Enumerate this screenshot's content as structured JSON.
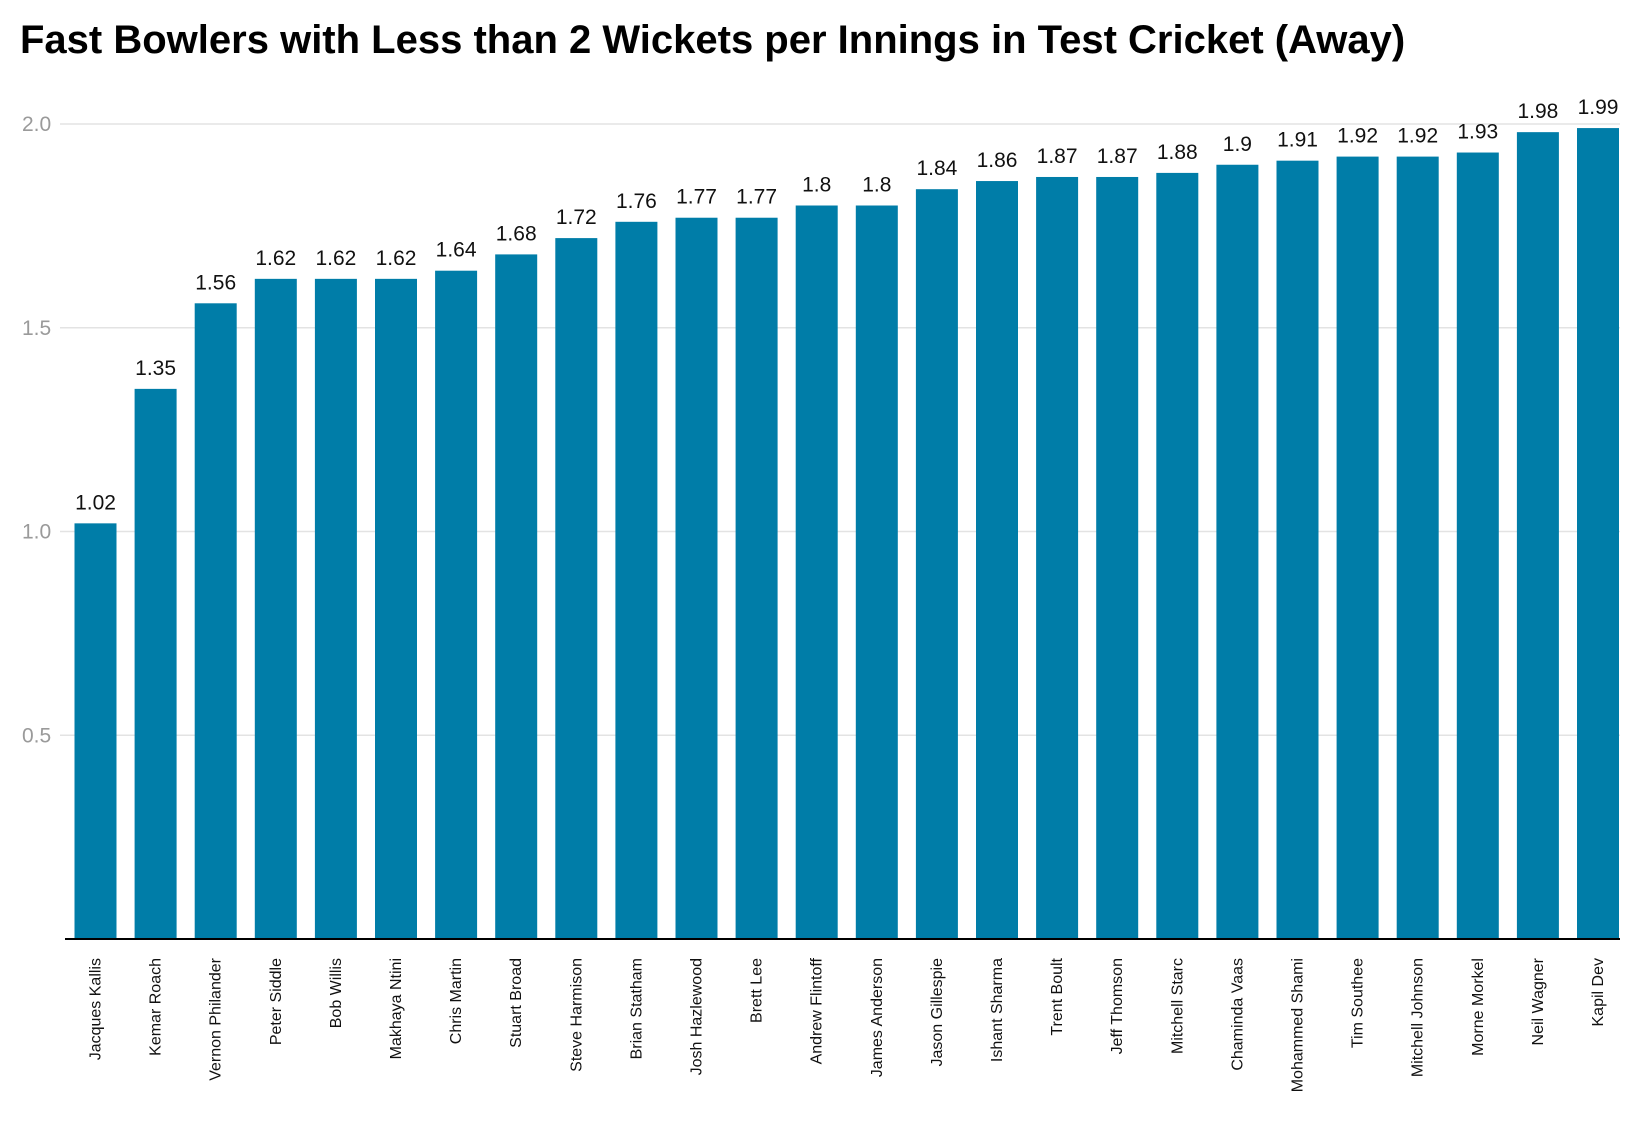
{
  "chart_data": {
    "type": "bar",
    "title": "Fast Bowlers with Less than 2 Wickets per Innings in Test Cricket (Away)",
    "xlabel": "",
    "ylabel": "",
    "ylim": [
      0,
      2.0
    ],
    "yticks": [
      "0.5",
      "1.0",
      "1.5",
      "2.0"
    ],
    "grid": true,
    "bar_color": "#007da8",
    "categories": [
      "Jacques Kallis",
      "Kemar Roach",
      "Vernon Philander",
      "Peter Siddle",
      "Bob Willis",
      "Makhaya Ntini",
      "Chris Martin",
      "Stuart Broad",
      "Steve Harmison",
      "Brian Statham",
      "Josh Hazlewood",
      "Brett Lee",
      "Andrew Flintoff",
      "James Anderson",
      "Jason Gillespie",
      "Ishant Sharma",
      "Trent Boult",
      "Jeff Thomson",
      "Mitchell Starc",
      "Chaminda Vaas",
      "Mohammed Shami",
      "Tim Southee",
      "Mitchell Johnson",
      "Morne Morkel",
      "Neil Wagner",
      "Kapil Dev"
    ],
    "values": [
      1.02,
      1.35,
      1.56,
      1.62,
      1.62,
      1.62,
      1.64,
      1.68,
      1.72,
      1.76,
      1.77,
      1.77,
      1.8,
      1.8,
      1.84,
      1.86,
      1.87,
      1.87,
      1.88,
      1.9,
      1.91,
      1.92,
      1.92,
      1.93,
      1.98,
      1.99
    ],
    "value_labels": [
      "1.02",
      "1.35",
      "1.56",
      "1.62",
      "1.62",
      "1.62",
      "1.64",
      "1.68",
      "1.72",
      "1.76",
      "1.77",
      "1.77",
      "1.8",
      "1.8",
      "1.84",
      "1.86",
      "1.87",
      "1.87",
      "1.88",
      "1.9",
      "1.91",
      "1.92",
      "1.92",
      "1.93",
      "1.98",
      "1.99"
    ]
  }
}
